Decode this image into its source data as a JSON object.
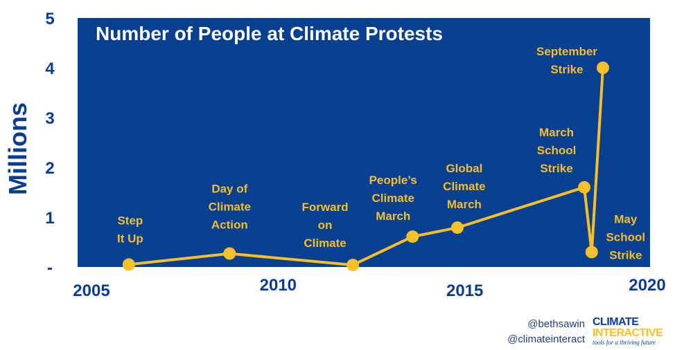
{
  "chart_data": {
    "type": "line",
    "title": "Number of People at Climate Protests",
    "ylabel": "Millions",
    "xlabel": "",
    "xlim": [
      2005,
      2020
    ],
    "ylim": [
      0,
      5
    ],
    "x_ticks": [
      "2005",
      "2010",
      "2015",
      "2020"
    ],
    "y_ticks": [
      "-",
      "1",
      "2",
      "3",
      "4",
      "5"
    ],
    "grid": false,
    "colors": {
      "plot_background": "#06408f",
      "line": "#f9bf2a",
      "axis_text": "#0a3d91"
    },
    "series": [
      {
        "points": [
          {
            "x": 2006.0,
            "y": 0.05,
            "label": [
              "Step",
              "It Up"
            ]
          },
          {
            "x": 2008.7,
            "y": 0.27,
            "label": [
              "Day of",
              "Climate",
              "Action"
            ]
          },
          {
            "x": 2012.0,
            "y": 0.04,
            "label": [
              "Forward",
              "on",
              "Climate"
            ]
          },
          {
            "x": 2013.6,
            "y": 0.61,
            "label": [
              "People’s",
              "Climate",
              "March"
            ]
          },
          {
            "x": 2014.8,
            "y": 0.79,
            "label": [
              "Global",
              "Climate",
              "March"
            ]
          },
          {
            "x": 2018.2,
            "y": 1.6,
            "label": [
              "March",
              "School",
              "Strike"
            ]
          },
          {
            "x": 2018.4,
            "y": 0.3,
            "label": [
              "May",
              "School",
              "Strike"
            ]
          },
          {
            "x": 2018.7,
            "y": 4.0,
            "label": [
              "September",
              "Strike"
            ]
          }
        ]
      }
    ]
  },
  "credits": {
    "line1": "@bethsawin",
    "line2": "@climateinteract"
  },
  "logo": {
    "line1": "CLIMATE",
    "line2": "INTERACTIVE",
    "tagline": "tools for a thriving future"
  }
}
